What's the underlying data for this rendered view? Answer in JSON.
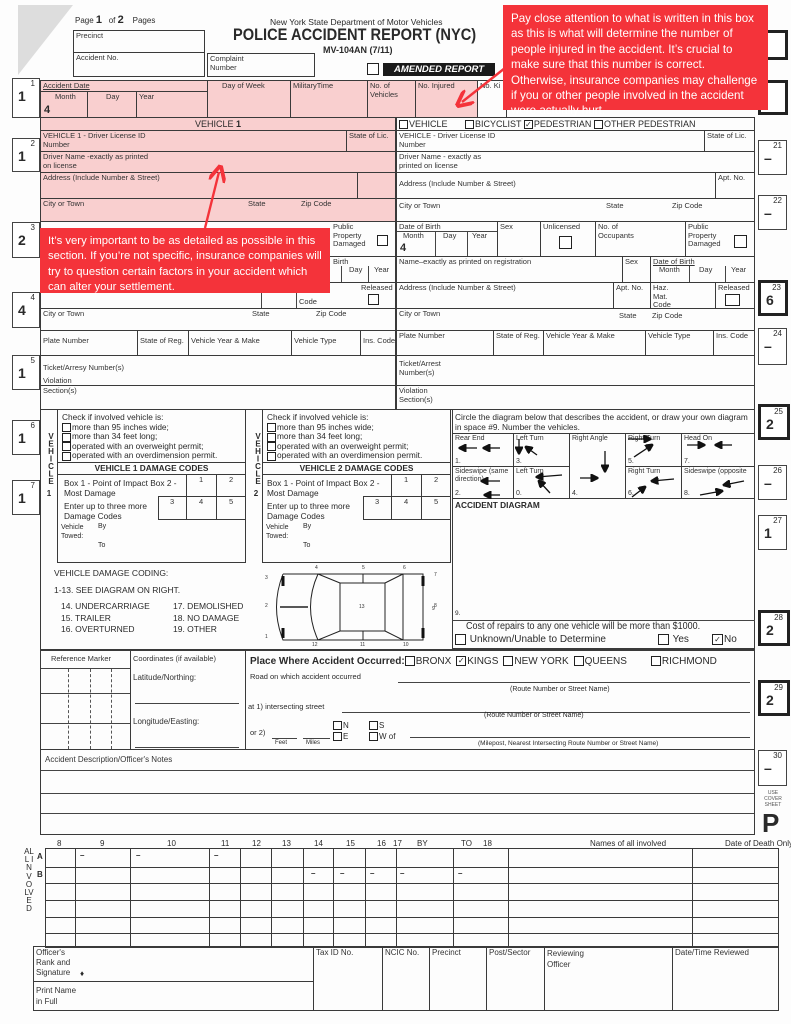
{
  "header": {
    "page_label": "Page",
    "page_num": "1",
    "of_label": "of",
    "total_pages": "2",
    "pages_label": "Pages",
    "agency": "New York State Department of Motor Vehicles",
    "title": "POLICE ACCIDENT REPORT (NYC)",
    "form_id": "MV-104AN (7/11)",
    "amended": "AMENDED REPORT",
    "precinct": "Precinct",
    "accident_no": "Accident No.",
    "complaint": "Complaint Number"
  },
  "side_left": [
    {
      "n": "1",
      "v": "1"
    },
    {
      "n": "2",
      "v": "1"
    },
    {
      "n": "3",
      "v": "2"
    },
    {
      "n": "4",
      "v": "4"
    },
    {
      "n": "5",
      "v": "1"
    },
    {
      "n": "6",
      "v": "1"
    },
    {
      "n": "7",
      "v": "1"
    }
  ],
  "side_right": [
    {
      "n": "21",
      "v": "–"
    },
    {
      "n": "22",
      "v": "–"
    },
    {
      "n": "23",
      "v": "6"
    },
    {
      "n": "24",
      "v": "–"
    },
    {
      "n": "25",
      "v": "2"
    },
    {
      "n": "26",
      "v": "–"
    },
    {
      "n": "27",
      "v": "1"
    },
    {
      "n": "28",
      "v": "2"
    },
    {
      "n": "29",
      "v": "2"
    },
    {
      "n": "30",
      "v": "–"
    }
  ],
  "cover_sheet": "USE COVER SHEET",
  "p_mark": "P",
  "accident": {
    "date": "Accident Date",
    "month": "Month",
    "month_val": "4",
    "day": "Day",
    "year": "Year",
    "dow": "Day of Week",
    "time": "MilitaryTime",
    "vehicles": "No. of Vehicles",
    "injured": "No. Injured",
    "killed": "No. Ki"
  },
  "v1": {
    "heading": "VEHICLE",
    "num": "1",
    "license": "VEHICLE 1 - Driver License ID Number",
    "state_lic": "State of Lic.",
    "driver_name": "Driver Name -exactly as printed on license",
    "address": "Address (Include Number & Street)",
    "city": "City or Town",
    "state": "State",
    "zip": "Zip Code",
    "public_prop": "Public Property Damaged",
    "birth": "Birth",
    "day": "Day",
    "year": "Year",
    "released": "Released",
    "code": "Code",
    "city2": "City or Town",
    "state2": "State",
    "zip2": "Zip Code",
    "plate": "Plate Number",
    "state_reg": "State of Reg.",
    "year_make": "Vehicle Year & Make",
    "type": "Vehicle Type",
    "ins": "Ins. Code",
    "ticket": "Ticket/Arresy Number(s)",
    "violation": "Violation",
    "section": "Section(s)"
  },
  "v2": {
    "opt_vehicle": "VEHICLE",
    "opt_bicyclist": "BICYCLIST",
    "opt_pedestrian": "PEDESTRIAN",
    "opt_other": "OTHER PEDESTRIAN",
    "license": "VEHICLE  - Driver License ID Number",
    "state_lic": "State of Lic.",
    "driver_name": "Driver Name - exactly as printed on license",
    "address": "Address (Include Number & Street)",
    "apt": "Apt. No.",
    "city": "City or Town",
    "state": "State",
    "zip": "Zip Code",
    "dob": "Date of Birth",
    "month": "Month",
    "month_val": "4",
    "day": "Day",
    "year": "Year",
    "sex": "Sex",
    "unlicensed": "Unlicensed",
    "occupants": "No. of Occupants",
    "public_prop": "Public Property Damaged",
    "reg_name": "Name–exactly as printed on registration",
    "sex2": "Sex",
    "dob2": "Date of Birth",
    "month2": "Month",
    "day2": "Day",
    "year2": "Year",
    "address2": "Address (Include Number & Street)",
    "apt2": "Apt. No.",
    "haz": "Haz. Mat. Code",
    "released": "Released",
    "city2": "City or Town",
    "state2": "State",
    "zip2": "Zip Code",
    "plate": "Plate Number",
    "state_reg": "State of Reg.",
    "year_make": "Vehicle Year & Make",
    "type": "Vehicle Type",
    "ins": "Ins. Code",
    "ticket": "Ticket/Arrest Number(s)",
    "violation": "Violation Section(s)"
  },
  "checks": {
    "title": "Check if involved vehicle is:",
    "items": [
      "more than 95 inches wide;",
      "more than 34 feet long;",
      "operated with an overweight permit;",
      "operated with an overdimension permit."
    ],
    "vehicle_letters": "VEHICLE",
    "v1_dmg": "VEHICLE 1 DAMAGE CODES",
    "v2_dmg": "VEHICLE 2 DAMAGE CODES",
    "box12": "Box 1 - Point of Impact Box 2 - Most Damage",
    "enter": "Enter up to three more Damage Codes",
    "c1": "1",
    "c2": "2",
    "c3": "3",
    "c4": "4",
    "c5": "5",
    "towed": "Vehicle Towed:",
    "by": "By",
    "to": "To",
    "n1": "1",
    "n2": "2"
  },
  "coding": {
    "title": "VEHICLE DAMAGE CODING:",
    "see": "1-13.  SEE DIAGRAM ON RIGHT.",
    "items": [
      "14.  UNDERCARRIAGE",
      "15.  TRAILER",
      "16.  OVERTURNED",
      "17.  DEMOLISHED",
      "18.  NO DAMAGE",
      "19.  OTHER"
    ],
    "car_labels": [
      "1",
      "2",
      "3",
      "4",
      "5",
      "6",
      "7",
      "8",
      "9",
      "10",
      "11",
      "12",
      "13"
    ]
  },
  "diagram": {
    "instructions": "Circle the diagram below that describes the accident, or draw your own diagram in space #9. Number the vehicles.",
    "types": [
      {
        "label": "Rear End",
        "num": "1."
      },
      {
        "label": "Left Turn",
        "num": "3."
      },
      {
        "label": "Right Angle",
        "num": "4."
      },
      {
        "label": "Right Turn",
        "num": "5."
      },
      {
        "label": "Head On",
        "num": "7."
      },
      {
        "label": "Sideswipe (same direction)",
        "num": "2."
      },
      {
        "label": "Left Turn",
        "num": "0."
      },
      {
        "label": "Right Turn",
        "num": "6."
      },
      {
        "label": "Sideswipe (opposite",
        "num": "8."
      }
    ],
    "heading": "ACCIDENT DIAGRAM",
    "space": "9.",
    "cost": "Cost of repairs to any one vehicle will be more than $1000.",
    "unknown": "Unknown/Unable to Determine",
    "yes": "Yes",
    "no": "No"
  },
  "place": {
    "ref_marker": "Reference Marker",
    "coords": "Coordinates (if available)",
    "lat": "Latitude/Northing:",
    "lon": "Longitude/Easting:",
    "title": "Place Where Accident Occurred:",
    "boroughs": [
      "BRONX",
      "KINGS",
      "NEW YORK",
      "QUEENS",
      "RICHMOND"
    ],
    "selected": "KINGS",
    "road": "Road on which accident occurred",
    "route": "(Route Number or Street Name)",
    "at1": "at 1) intersecting street",
    "or2": "or 2)",
    "feet": "Feet",
    "miles": "Miles",
    "n": "N",
    "s": "S",
    "e": "E",
    "w": "W",
    "of": "of",
    "milepost": "(Milepost, Nearest Intersecting Route Number or Street Name)"
  },
  "notes_label": "Accident Description/Officer's Notes",
  "involved": {
    "side": "ALL INVOLVED",
    "cols": [
      "8",
      "9",
      "10",
      "11",
      "12",
      "13",
      "14",
      "15",
      "16",
      "17",
      "BY",
      "TO",
      "18",
      "Names of all involved",
      "Date of Death Only"
    ],
    "rowA": "A",
    "rowB": "B",
    "dash": "–"
  },
  "officer": {
    "rank": "Officer's Rank and Signature",
    "print": "Print Name in Full",
    "tax": "Tax ID No.",
    "ncic": "NCIC No.",
    "precinct": "Precinct",
    "post": "Post/Sector",
    "reviewing": "Reviewing Officer",
    "reviewed": "Date/Time Reviewed"
  },
  "annotations": {
    "injured_note": "Pay close attention to what is written in this box as this is what will determine the number of people injured in the accident.  It’s crucial to make sure that this number is correct. Otherwise, insurance companies may challenge if you or other people involved in the accident were actually hurt.",
    "detail_note": "It’s very important to be as detailed as possible in this section. If you’re not specific, insurance companies will try to question certain factors in your accident which can alter your settlement.",
    "color": "#f4333a",
    "highlight": "#f6aaaa"
  }
}
